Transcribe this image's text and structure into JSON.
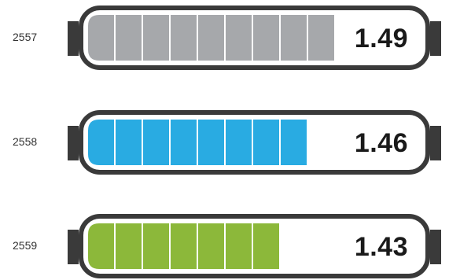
{
  "chart_data": {
    "type": "bar",
    "categories": [
      "2557",
      "2558",
      "2559"
    ],
    "values": [
      1.49,
      1.46,
      1.43
    ],
    "segments": [
      9,
      8,
      7
    ],
    "colors": [
      "#a6a8ab",
      "#29abe2",
      "#8cb83a"
    ],
    "outline_color": "#3a3a3a"
  },
  "rows": [
    {
      "year": "2557",
      "value": "1.49"
    },
    {
      "year": "2558",
      "value": "1.46"
    },
    {
      "year": "2559",
      "value": "1.43"
    }
  ]
}
